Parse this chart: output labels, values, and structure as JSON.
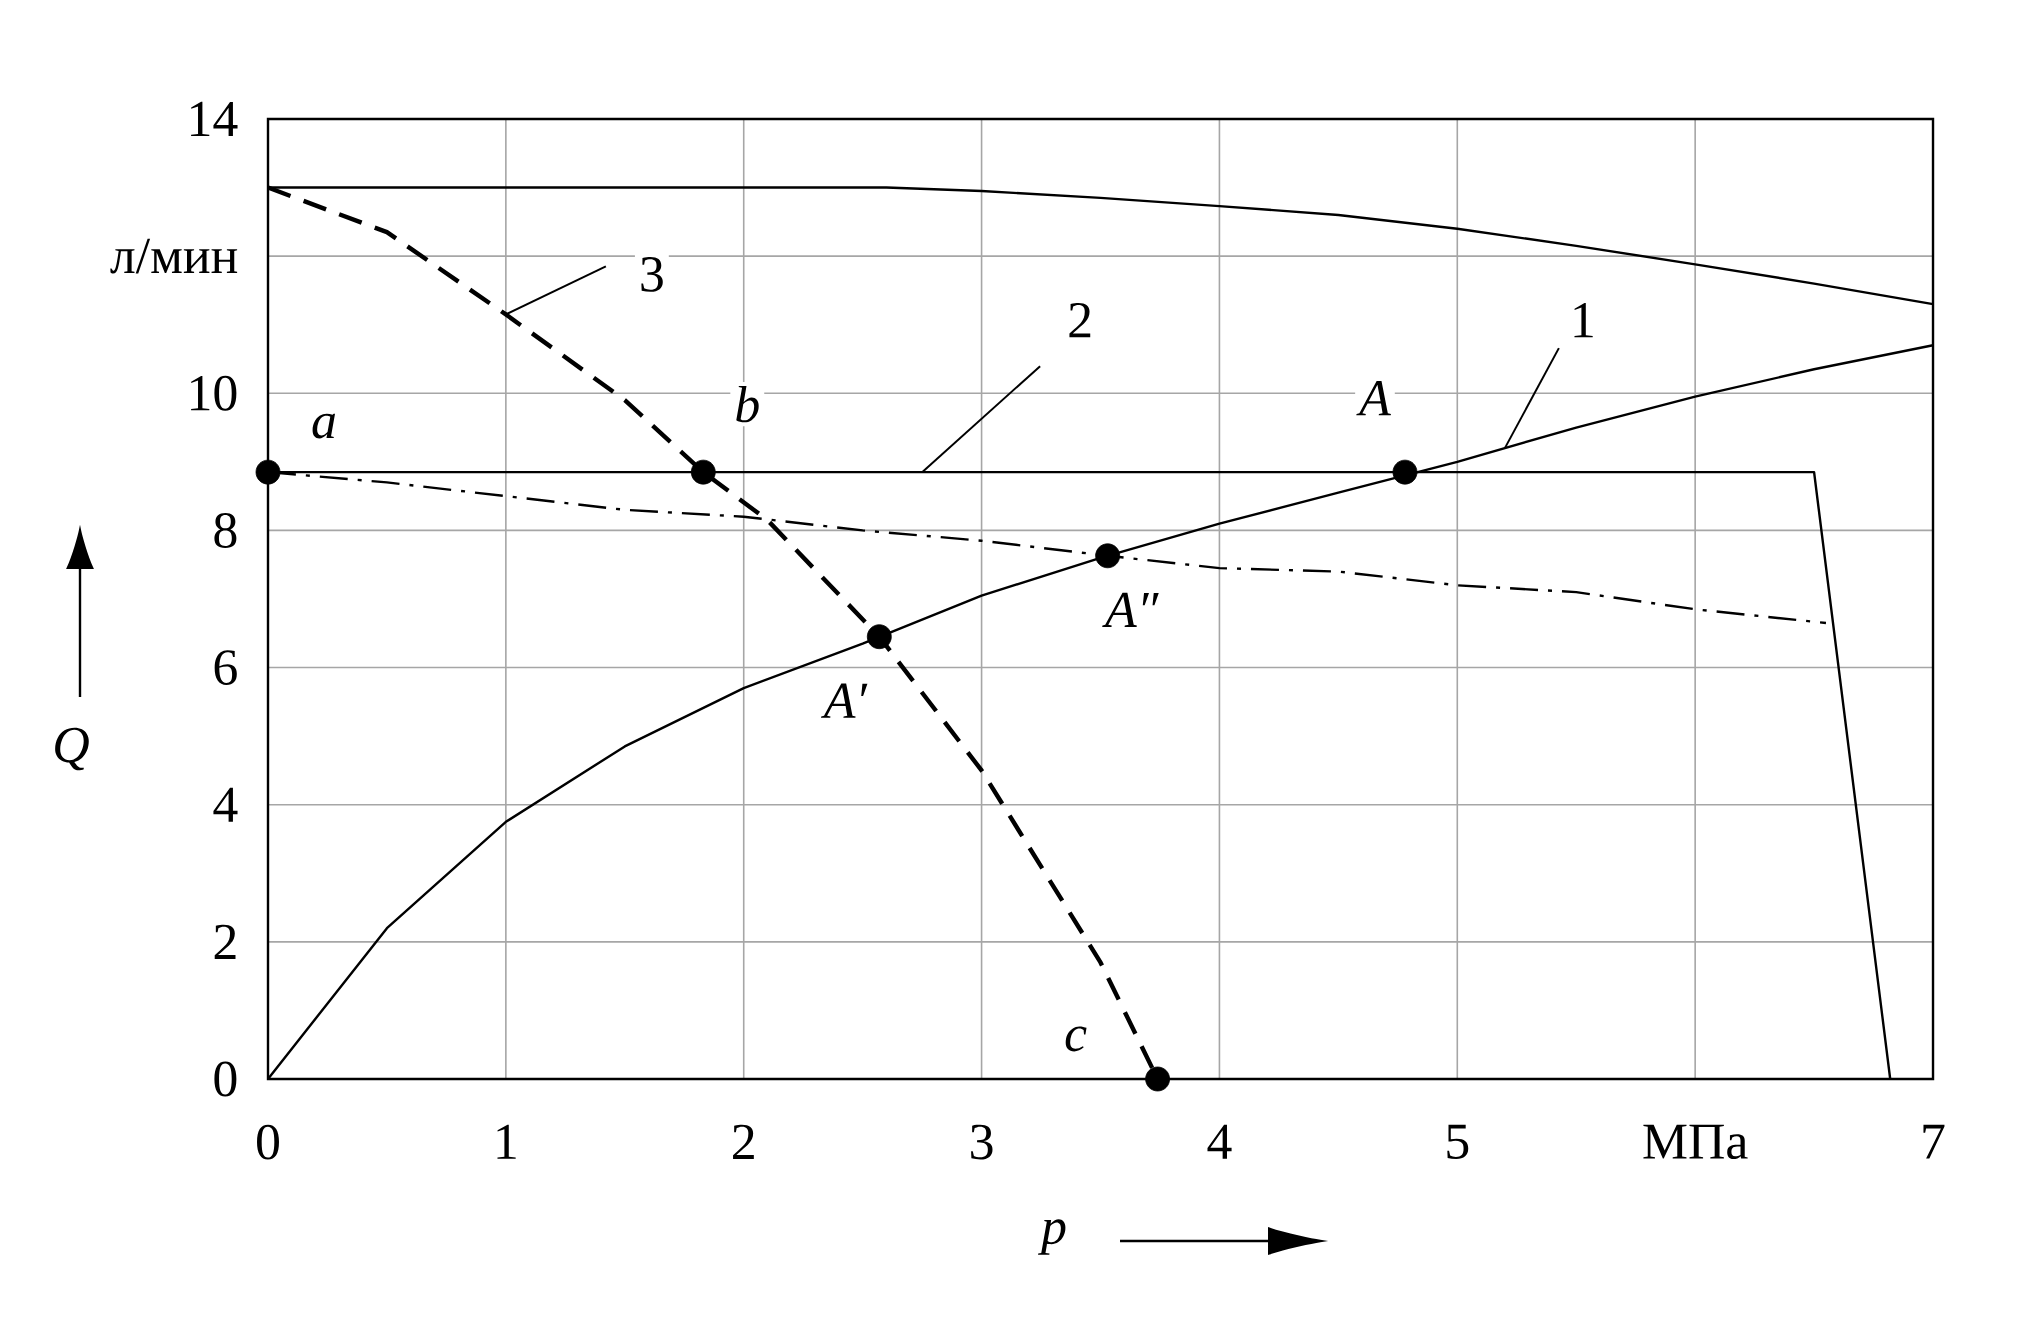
{
  "chart_data": {
    "type": "line",
    "xlabel": "p",
    "ylabel": "Q",
    "xlim": [
      0,
      7
    ],
    "ylim": [
      0,
      14
    ],
    "xticks": [
      0,
      1,
      2,
      3,
      4,
      5,
      {
        "value": 6,
        "label": "МПа"
      },
      7
    ],
    "yticks": [
      0,
      2,
      4,
      6,
      8,
      10,
      {
        "value": 12,
        "label": "л/мин"
      },
      14
    ],
    "grid": true,
    "series": [
      {
        "color": "#000000",
        "line_style": "solid",
        "x": [
          0,
          0.5,
          1,
          1.5,
          2,
          2.5,
          3,
          3.5,
          4,
          4.5,
          5,
          5.5,
          6,
          6.5,
          7
        ],
        "values": [
          0,
          2.2,
          3.75,
          4.85,
          5.7,
          6.35,
          7.05,
          7.6,
          8.1,
          8.55,
          9.0,
          9.5,
          9.95,
          10.35,
          10.7
        ]
      },
      {
        "color": "#000000",
        "line_style": "solid",
        "x": [
          0,
          6.5,
          6.82
        ],
        "values": [
          8.85,
          8.85,
          0
        ]
      },
      {
        "color": "#000000",
        "line_style": "solid",
        "x": [
          0,
          2.6,
          3,
          3.5,
          4,
          4.5,
          5,
          5.5,
          6,
          6.5,
          7
        ],
        "values": [
          13,
          13,
          12.95,
          12.85,
          12.73,
          12.6,
          12.4,
          12.15,
          11.88,
          11.6,
          11.3
        ]
      },
      {
        "color": "#000000",
        "line_style": "dashed",
        "x": [
          0,
          0.5,
          1,
          1.5,
          1.83,
          2.1,
          2.57,
          3,
          3.5,
          3.74
        ],
        "values": [
          13,
          12.35,
          11.15,
          9.9,
          8.85,
          8.15,
          6.45,
          4.5,
          1.7,
          0
        ]
      },
      {
        "color": "#000000",
        "line_style": "dashdot",
        "x": [
          0,
          0.5,
          1,
          1.5,
          2,
          2.5,
          3,
          3.53,
          4,
          4.5,
          5,
          5.5,
          6,
          6.55
        ],
        "values": [
          8.85,
          8.7,
          8.5,
          8.3,
          8.2,
          8.0,
          7.85,
          7.63,
          7.45,
          7.4,
          7.2,
          7.1,
          6.85,
          6.65
        ]
      },
      {
        "type": "scatter",
        "color": "#000000",
        "marker": "circle",
        "x": [
          0,
          1.83,
          4.78,
          2.57,
          3.53,
          3.74
        ],
        "values": [
          8.85,
          8.85,
          8.85,
          6.45,
          7.63,
          0
        ]
      }
    ],
    "annotations": [
      {
        "text": "a",
        "x": 0,
        "y": 8.85
      },
      {
        "text": "b",
        "x": 1.83,
        "y": 8.85
      },
      {
        "text": "A",
        "x": 4.78,
        "y": 8.85
      },
      {
        "text": "A′",
        "x": 2.57,
        "y": 6.45
      },
      {
        "text": "A″",
        "x": 3.53,
        "y": 7.63
      },
      {
        "text": "c",
        "x": 3.74,
        "y": 0
      },
      {
        "text": "1",
        "x": 5.2,
        "y": 9.2
      },
      {
        "text": "2",
        "x": 2.75,
        "y": 8.85
      },
      {
        "text": "3",
        "x": 1,
        "y": 11.15
      }
    ]
  }
}
